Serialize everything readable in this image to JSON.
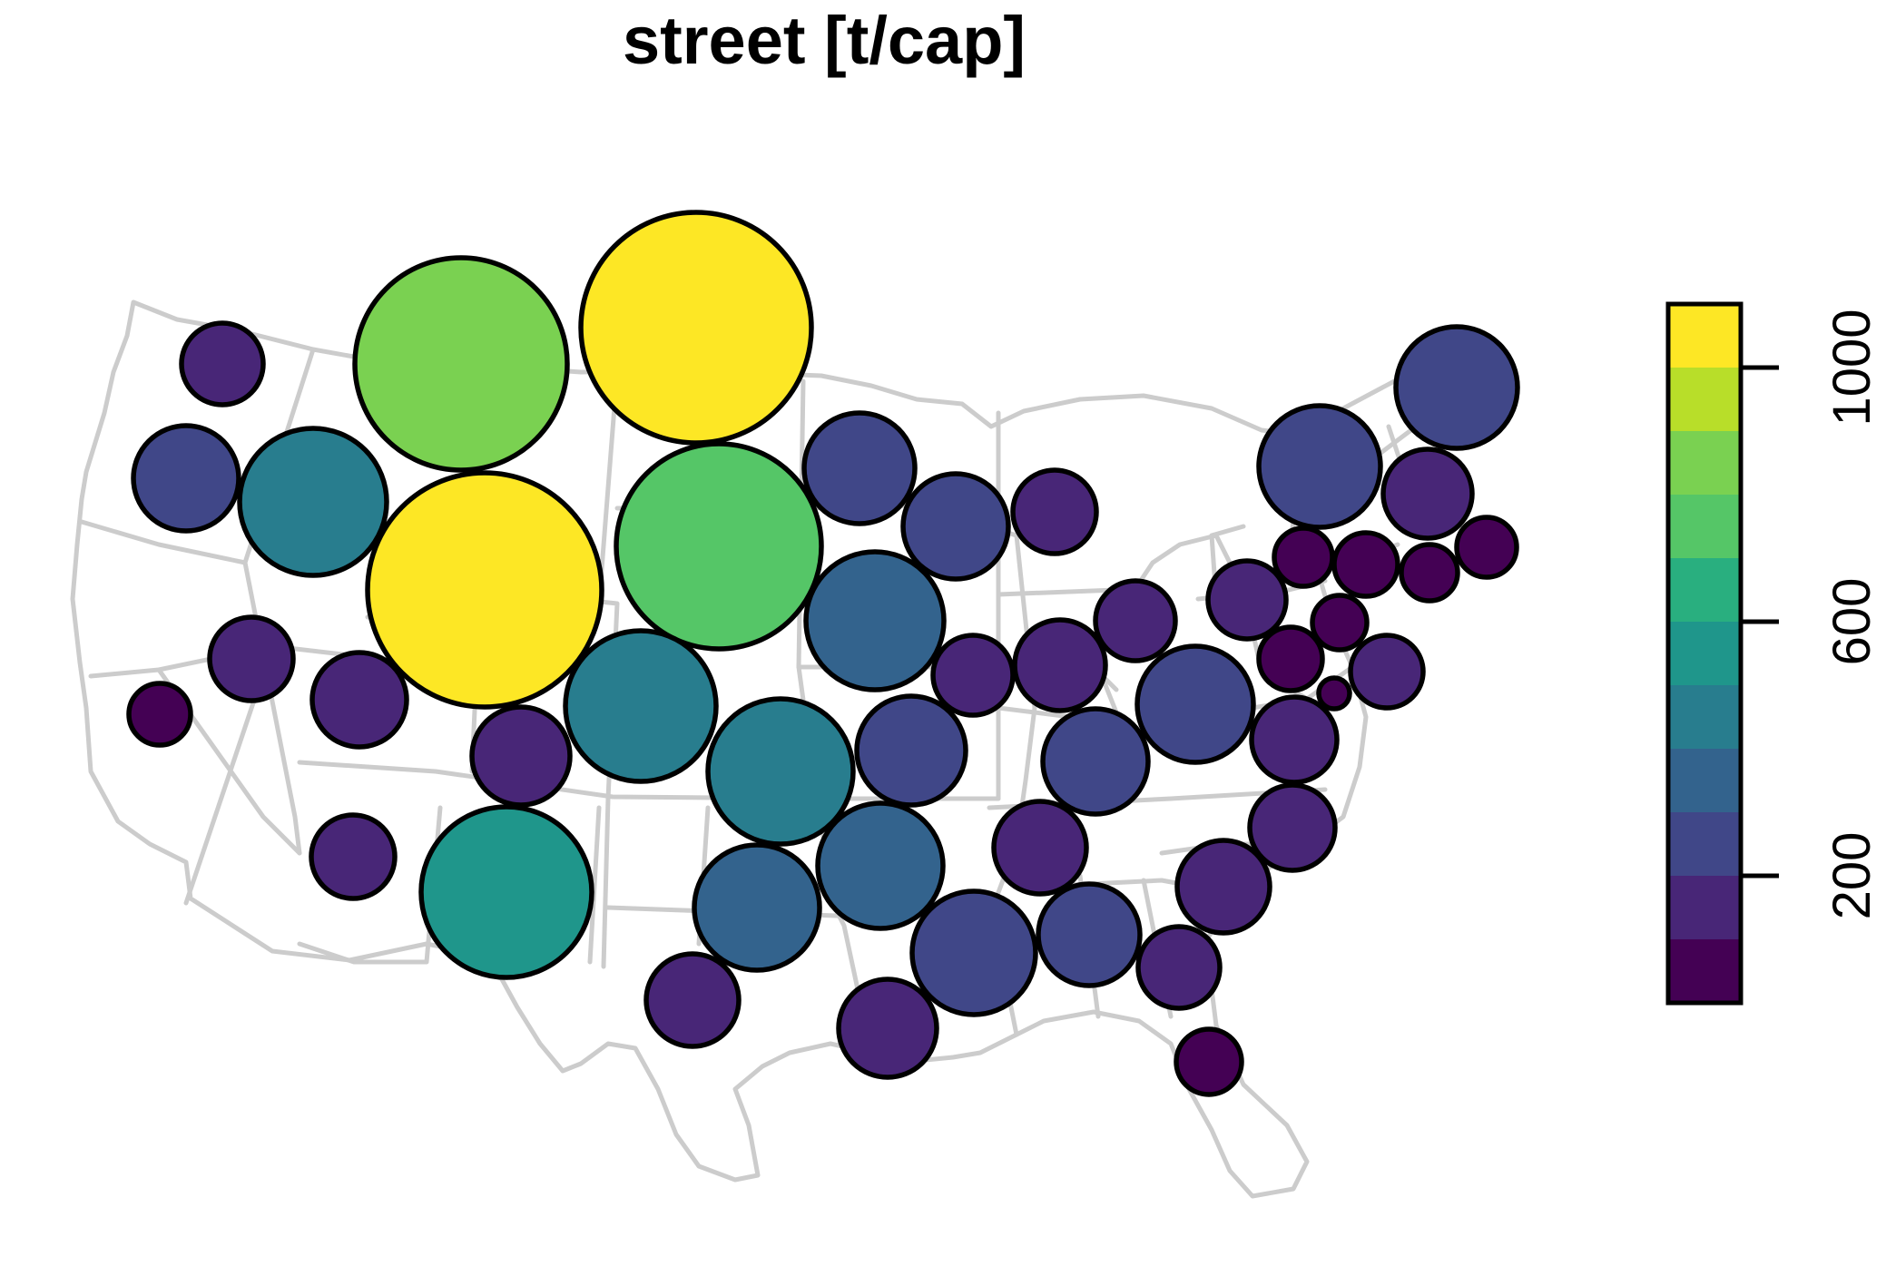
{
  "title": "street [t/cap]",
  "map": {
    "type": "proportional-symbol",
    "basemap": "us-states",
    "basemap_color": "#cccccc",
    "symbol_outline_color": "#000000"
  },
  "legend": {
    "orientation": "vertical",
    "placement": "right",
    "range": [
      0,
      1100
    ],
    "bin_width": 100,
    "bins": [
      {
        "from": 0,
        "to": 100,
        "color": "#440154"
      },
      {
        "from": 100,
        "to": 200,
        "color": "#482677"
      },
      {
        "from": 200,
        "to": 300,
        "color": "#404788"
      },
      {
        "from": 300,
        "to": 400,
        "color": "#33638D"
      },
      {
        "from": 400,
        "to": 500,
        "color": "#287D8E"
      },
      {
        "from": 500,
        "to": 600,
        "color": "#1F968B"
      },
      {
        "from": 600,
        "to": 700,
        "color": "#29AF7F"
      },
      {
        "from": 700,
        "to": 800,
        "color": "#55C667"
      },
      {
        "from": 800,
        "to": 900,
        "color": "#7AD151"
      },
      {
        "from": 900,
        "to": 1000,
        "color": "#B8DE29"
      },
      {
        "from": 1000,
        "to": 1100,
        "color": "#FDE725"
      }
    ],
    "ticks": [
      {
        "value": 200,
        "label": "200"
      },
      {
        "value": 600,
        "label": "600"
      },
      {
        "value": 1000,
        "label": "1000"
      }
    ]
  }
}
